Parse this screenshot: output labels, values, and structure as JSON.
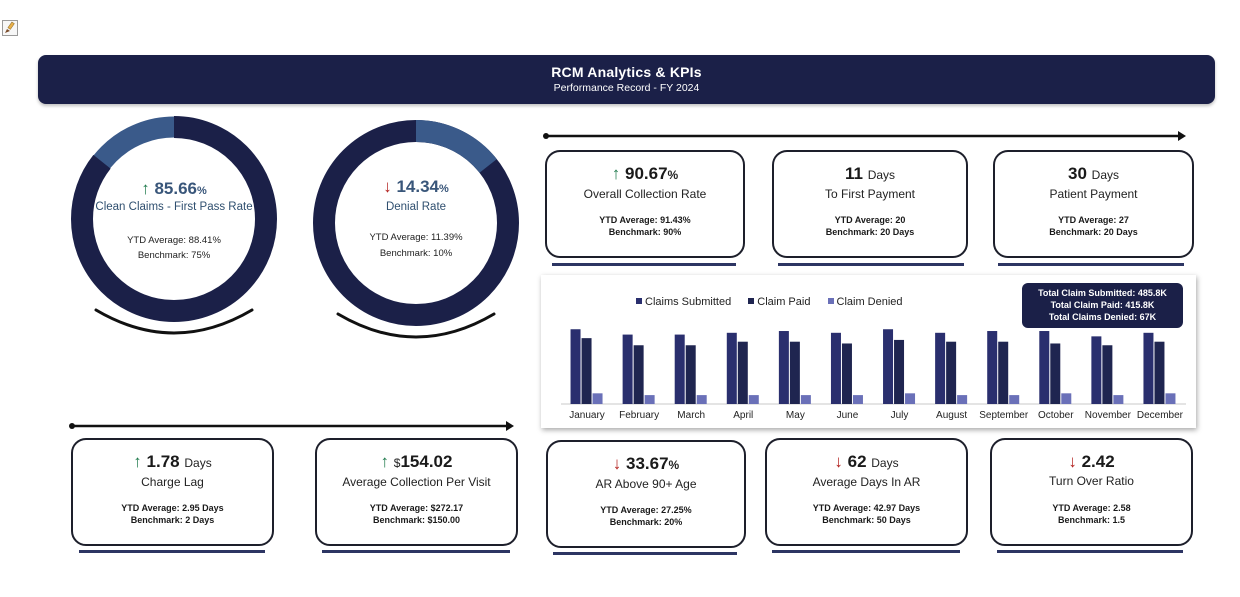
{
  "header": {
    "title": "RCM Analytics & KPIs",
    "subtitle": "Performance Record - FY 2024"
  },
  "icons": {
    "toolbar": "paintbrush-icon"
  },
  "colors": {
    "navy": "#1b2048",
    "up": "#1f7a4c",
    "down": "#b3221f",
    "submitted": "#2a2f6e",
    "paid": "#1f2550",
    "denied": "#6a70b8"
  },
  "donuts": [
    {
      "arrow": "↑",
      "direction": "up",
      "value": "85.66",
      "unit": "%",
      "label": "Clean Claims - First Pass Rate",
      "ytd": "YTD Average: 88.41%",
      "benchmark": "Benchmark: 75%",
      "fraction": 0.8566
    },
    {
      "arrow": "↓",
      "direction": "down",
      "value": "14.34",
      "unit": "%",
      "label": "Denial Rate",
      "ytd": "YTD Average: 11.39%",
      "benchmark": "Benchmark: 10%",
      "fraction": 0.1434
    }
  ],
  "top_kpis": [
    {
      "arrow": "↑",
      "direction": "up",
      "value": "90.67",
      "unit": "%",
      "label": "Overall Collection Rate",
      "ytd": "YTD Average: 91.43%",
      "benchmark": "Benchmark: 90%"
    },
    {
      "arrow": "",
      "direction": "none",
      "value": "11",
      "unit": "Days",
      "label": "To First Payment",
      "ytd": "YTD Average: 20",
      "benchmark": "Benchmark: 20 Days"
    },
    {
      "arrow": "",
      "direction": "none",
      "value": "30",
      "unit": "Days",
      "label": "Patient Payment",
      "ytd": "YTD Average: 27",
      "benchmark": "Benchmark: 20 Days"
    }
  ],
  "bottom_kpis": [
    {
      "arrow": "↑",
      "direction": "up",
      "prefix": "",
      "value": "1.78",
      "unit": "Days",
      "label": "Charge Lag",
      "ytd": "YTD Average: 2.95 Days",
      "benchmark": "Benchmark: 2 Days"
    },
    {
      "arrow": "↑",
      "direction": "up",
      "prefix": "$",
      "value": "154.02",
      "unit": "",
      "label": "Average Collection Per Visit",
      "ytd": "YTD Average: $272.17",
      "benchmark": "Benchmark: $150.00"
    },
    {
      "arrow": "↓",
      "direction": "down",
      "prefix": "",
      "value": "33.67",
      "unit": "%",
      "label": "AR Above 90+ Age",
      "ytd": "YTD Average: 27.25%",
      "benchmark": "Benchmark: 20%"
    },
    {
      "arrow": "↓",
      "direction": "down",
      "prefix": "",
      "value": "62",
      "unit": "Days",
      "label": "Average Days In AR",
      "ytd": "YTD Average: 42.97 Days",
      "benchmark": "Benchmark: 50 Days"
    },
    {
      "arrow": "↓",
      "direction": "down",
      "prefix": "",
      "value": "2.42",
      "unit": "",
      "label": "Turn Over Ratio",
      "ytd": "YTD Average: 2.58",
      "benchmark": "Benchmark: 1.5"
    }
  ],
  "totals": {
    "submitted": "Total Claim Submitted: 485.8K",
    "paid": "Total Claim Paid: 415.8K",
    "denied": "Total Claims Denied: 67K"
  },
  "chart_data": {
    "type": "bar",
    "categories": [
      "January",
      "February",
      "March",
      "April",
      "May",
      "June",
      "July",
      "August",
      "September",
      "October",
      "November",
      "December"
    ],
    "series": [
      {
        "name": "Claims Submitted",
        "values": [
          42,
          39,
          39,
          40,
          41,
          40,
          42,
          40,
          41,
          41,
          38,
          40
        ]
      },
      {
        "name": "Claim Paid",
        "values": [
          37,
          33,
          33,
          35,
          35,
          34,
          36,
          35,
          35,
          34,
          33,
          35
        ]
      },
      {
        "name": "Claim Denied",
        "values": [
          6,
          5,
          5,
          5,
          5,
          5,
          6,
          5,
          5,
          6,
          5,
          6
        ]
      }
    ],
    "ylim": [
      0,
      50
    ],
    "legend": "top-left",
    "grid": false
  }
}
